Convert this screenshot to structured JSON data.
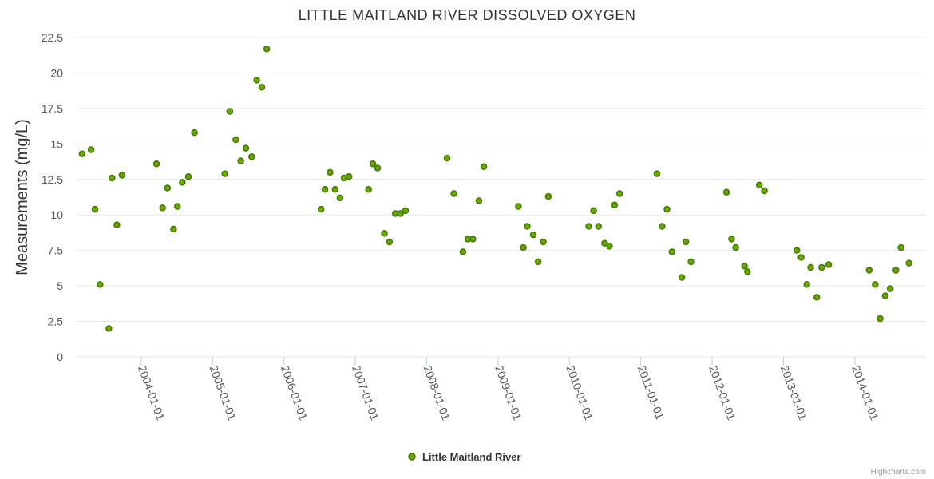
{
  "chart_data": {
    "type": "scatter",
    "title": "LITTLE MAITLAND RIVER DISSOLVED OXYGEN",
    "ylabel": "Measurements (mg/L)",
    "xlabel": "",
    "ylim": [
      0,
      22.5
    ],
    "yticks": [
      "0",
      "2.5",
      "5",
      "7.5",
      "10",
      "12.5",
      "15",
      "17.5",
      "20",
      "22.5"
    ],
    "xticks": [
      "2004-01-01",
      "2005-01-01",
      "2006-01-01",
      "2007-01-01",
      "2008-01-01",
      "2009-01-01",
      "2010-01-01",
      "2011-01-01",
      "2012-01-01",
      "2013-01-01",
      "2014-01-01"
    ],
    "xlim": [
      "2003-02-01",
      "2014-12-31"
    ],
    "grid": "horizontal",
    "legend": "bottom-center",
    "marker_color": "#6aa700",
    "marker_edge": "#3e7a00",
    "series": [
      {
        "name": "Little Maitland River",
        "points": [
          [
            "2003-03-05",
            14.3
          ],
          [
            "2003-04-20",
            14.6
          ],
          [
            "2003-05-10",
            10.4
          ],
          [
            "2003-06-05",
            5.1
          ],
          [
            "2003-07-20",
            2.0
          ],
          [
            "2003-08-05",
            12.6
          ],
          [
            "2003-08-30",
            9.3
          ],
          [
            "2003-09-25",
            12.8
          ],
          [
            "2004-03-20",
            13.6
          ],
          [
            "2004-04-20",
            10.5
          ],
          [
            "2004-05-15",
            11.9
          ],
          [
            "2004-06-15",
            9.0
          ],
          [
            "2004-07-05",
            10.6
          ],
          [
            "2004-07-30",
            12.3
          ],
          [
            "2004-08-30",
            12.7
          ],
          [
            "2004-09-30",
            15.8
          ],
          [
            "2005-03-05",
            12.9
          ],
          [
            "2005-03-30",
            17.3
          ],
          [
            "2005-04-30",
            15.3
          ],
          [
            "2005-05-25",
            13.8
          ],
          [
            "2005-06-20",
            14.7
          ],
          [
            "2005-07-20",
            14.1
          ],
          [
            "2005-08-15",
            19.5
          ],
          [
            "2005-09-10",
            19.0
          ],
          [
            "2005-10-05",
            21.7
          ],
          [
            "2006-07-10",
            10.4
          ],
          [
            "2006-07-30",
            11.8
          ],
          [
            "2006-08-25",
            13.0
          ],
          [
            "2006-09-20",
            11.8
          ],
          [
            "2006-10-15",
            11.2
          ],
          [
            "2006-11-05",
            12.6
          ],
          [
            "2006-11-30",
            12.7
          ],
          [
            "2007-03-10",
            11.8
          ],
          [
            "2007-04-01",
            13.6
          ],
          [
            "2007-04-25",
            13.3
          ],
          [
            "2007-05-30",
            8.7
          ],
          [
            "2007-06-25",
            8.1
          ],
          [
            "2007-07-25",
            10.1
          ],
          [
            "2007-08-20",
            10.1
          ],
          [
            "2007-09-15",
            10.3
          ],
          [
            "2008-04-15",
            14.0
          ],
          [
            "2008-05-20",
            11.5
          ],
          [
            "2008-07-05",
            7.4
          ],
          [
            "2008-07-30",
            8.3
          ],
          [
            "2008-08-25",
            8.3
          ],
          [
            "2008-09-25",
            11.0
          ],
          [
            "2008-10-20",
            13.4
          ],
          [
            "2009-04-15",
            10.6
          ],
          [
            "2009-05-10",
            7.7
          ],
          [
            "2009-05-30",
            9.2
          ],
          [
            "2009-06-30",
            8.6
          ],
          [
            "2009-07-25",
            6.7
          ],
          [
            "2009-08-20",
            8.1
          ],
          [
            "2009-09-15",
            11.3
          ],
          [
            "2010-04-10",
            9.2
          ],
          [
            "2010-05-05",
            10.3
          ],
          [
            "2010-05-30",
            9.2
          ],
          [
            "2010-06-30",
            8.0
          ],
          [
            "2010-07-25",
            7.8
          ],
          [
            "2010-08-20",
            10.7
          ],
          [
            "2010-09-15",
            11.5
          ],
          [
            "2011-03-25",
            12.9
          ],
          [
            "2011-04-20",
            9.2
          ],
          [
            "2011-05-15",
            10.4
          ],
          [
            "2011-06-10",
            7.4
          ],
          [
            "2011-07-30",
            5.6
          ],
          [
            "2011-08-20",
            8.1
          ],
          [
            "2011-09-15",
            6.7
          ],
          [
            "2012-03-15",
            11.6
          ],
          [
            "2012-04-10",
            8.3
          ],
          [
            "2012-05-01",
            7.7
          ],
          [
            "2012-06-15",
            6.4
          ],
          [
            "2012-06-30",
            6.0
          ],
          [
            "2012-08-30",
            12.1
          ],
          [
            "2012-09-25",
            11.7
          ],
          [
            "2013-03-10",
            7.5
          ],
          [
            "2013-04-01",
            7.0
          ],
          [
            "2013-04-30",
            5.1
          ],
          [
            "2013-05-20",
            6.3
          ],
          [
            "2013-06-20",
            4.2
          ],
          [
            "2013-07-15",
            6.3
          ],
          [
            "2013-08-20",
            6.5
          ],
          [
            "2014-03-15",
            6.1
          ],
          [
            "2014-04-15",
            5.1
          ],
          [
            "2014-05-10",
            2.7
          ],
          [
            "2014-06-05",
            4.3
          ],
          [
            "2014-07-01",
            4.8
          ],
          [
            "2014-07-30",
            6.1
          ],
          [
            "2014-08-25",
            7.7
          ],
          [
            "2014-10-05",
            6.6
          ]
        ]
      }
    ],
    "credits": "Highcharts.com"
  }
}
